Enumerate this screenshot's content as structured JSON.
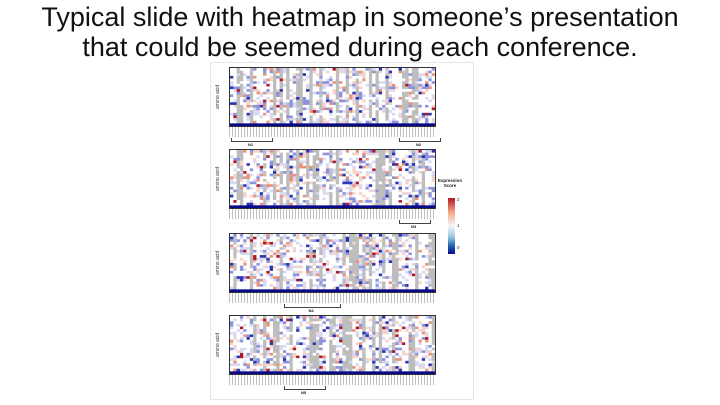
{
  "slide": {
    "title_line1": "Typical slide with heatmap in someone’s presentation",
    "title_line2": "that could be seemed during each conference."
  },
  "figure": {
    "ylabel": "amino acid",
    "legend_title": "Expression Score",
    "legend_ticks": [
      "2",
      "1",
      "0"
    ],
    "colors": {
      "high": "#b2182b",
      "mid": "#f7f7f7",
      "low": "#08088a",
      "missing": "#bdbdbd"
    },
    "groups": [
      "N1",
      "N2",
      "N3",
      "N4",
      "N5"
    ]
  }
}
